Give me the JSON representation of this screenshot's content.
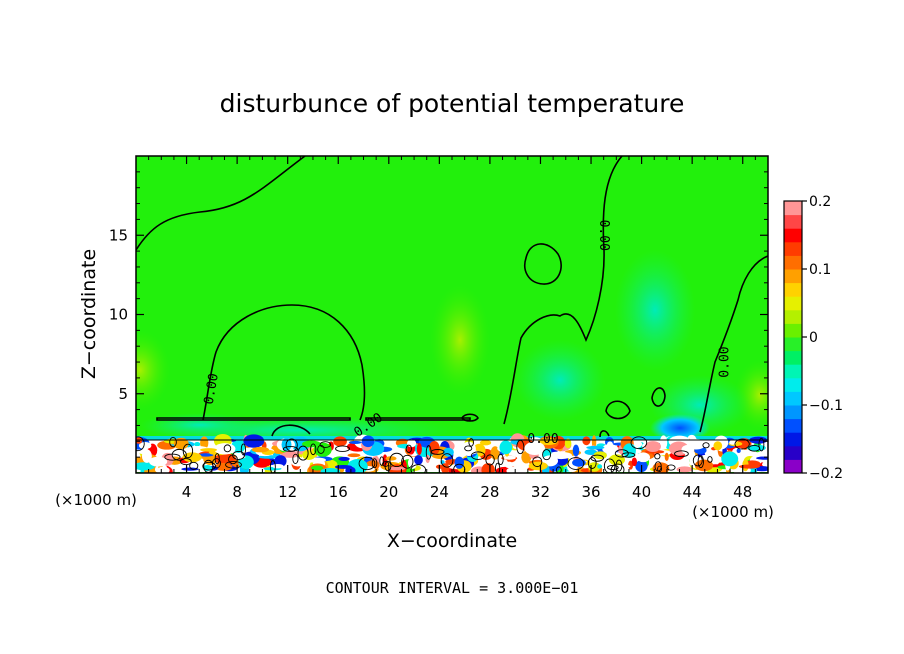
{
  "chart_data": {
    "type": "heatmap",
    "title": "disturbunce of potential temperature",
    "xlabel": "X−coordinate",
    "ylabel": "Z−coordinate",
    "x_unit_left": "(×1000 m)",
    "x_unit_right": "(×1000 m)",
    "xlim": [
      0,
      50
    ],
    "ylim": [
      0,
      20
    ],
    "x_ticks": [
      4,
      8,
      12,
      16,
      20,
      24,
      28,
      32,
      36,
      40,
      44,
      48
    ],
    "y_ticks": [
      5,
      10,
      15
    ],
    "footer": "CONTOUR INTERVAL = 3.000E−01",
    "colorbar": {
      "range": [
        -0.2,
        0.2
      ],
      "ticks": [
        {
          "value": 0.2,
          "label": "0.2"
        },
        {
          "value": 0.1,
          "label": "0.1"
        },
        {
          "value": 0,
          "label": "0"
        },
        {
          "value": -0.1,
          "label": "−0.1"
        },
        {
          "value": -0.2,
          "label": "−0.2"
        }
      ],
      "colors": [
        "#8a00c8",
        "#2800c8",
        "#0018e6",
        "#0050ff",
        "#0096ff",
        "#00c8ff",
        "#00ecec",
        "#00f5b4",
        "#00f064",
        "#28f028",
        "#6af000",
        "#b4f000",
        "#e6f000",
        "#ffd200",
        "#ffa000",
        "#ff6e00",
        "#ff3c00",
        "#ff0000",
        "#ff4646",
        "#ff9696"
      ]
    },
    "contour_labels": [
      {
        "x": 6.0,
        "y": 5.3,
        "text": "0.00",
        "rotate": -80
      },
      {
        "x": 18.4,
        "y": 3.0,
        "text": "0.00",
        "rotate": -35
      },
      {
        "x": 32.2,
        "y": 2.1,
        "text": "0.00",
        "rotate": 0
      },
      {
        "x": 37.0,
        "y": 15.0,
        "text": "0.00",
        "rotate": 90
      },
      {
        "x": 46.6,
        "y": 7.0,
        "text": "0.00",
        "rotate": -90
      }
    ]
  }
}
